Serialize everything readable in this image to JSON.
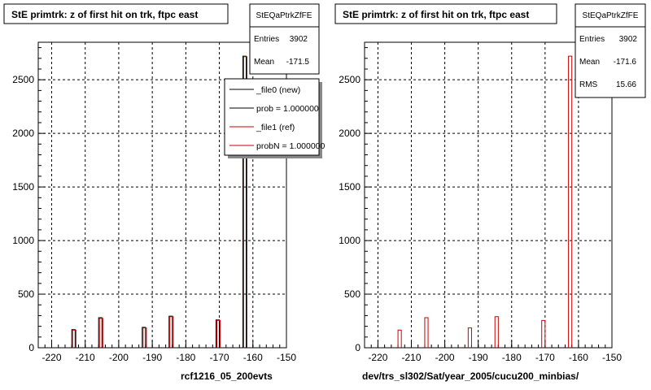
{
  "chart_data": [
    {
      "type": "bar",
      "title": "StE primtrk: z of first hit on trk, ftpc east",
      "xlabel": "rcf1216_05_200evts",
      "xlim": [
        -224,
        -150
      ],
      "ylim": [
        0,
        2850
      ],
      "xticks": [
        -220,
        -210,
        -200,
        -190,
        -180,
        -170,
        -160,
        -150
      ],
      "yticks": [
        0,
        500,
        1000,
        1500,
        2000,
        2500
      ],
      "grid": true,
      "stats": {
        "name": "StEQaPtrkZfFE",
        "rows": [
          {
            "label": "Entries",
            "value": "3902"
          },
          {
            "label": "Mean",
            "value": "-171.5"
          }
        ]
      },
      "legend": {
        "placement": "top-right",
        "entries": [
          {
            "label": "_file0 (new)",
            "color": "#000000"
          },
          {
            "label": "prob = 1.000000",
            "color": "#000000"
          },
          {
            "label": "_file1 (ref)",
            "color": "#cc0000"
          },
          {
            "label": "probN = 1.000000",
            "color": "#cc0000"
          }
        ]
      },
      "series": [
        {
          "color": "#000000",
          "bins": [
            {
              "x0": -214,
              "x1": -213,
              "y": 170
            },
            {
              "x0": -206,
              "x1": -205,
              "y": 280
            },
            {
              "x0": -193,
              "x1": -192,
              "y": 190
            },
            {
              "x0": -185,
              "x1": -184,
              "y": 295
            },
            {
              "x0": -171,
              "x1": -170,
              "y": 260
            },
            {
              "x0": -163,
              "x1": -162,
              "y": 2720
            }
          ]
        },
        {
          "color": "#cc0000",
          "bins": [
            {
              "x0": -214,
              "x1": -213,
              "y": 165
            },
            {
              "x0": -206,
              "x1": -205,
              "y": 275
            },
            {
              "x0": -193,
              "x1": -192,
              "y": 185
            },
            {
              "x0": -185,
              "x1": -184,
              "y": 290
            },
            {
              "x0": -171,
              "x1": -170,
              "y": 255
            },
            {
              "x0": -163,
              "x1": -162,
              "y": 2715
            }
          ]
        }
      ]
    },
    {
      "type": "bar",
      "title": "StE primtrk: z of first hit on trk, ftpc east",
      "xlabel": "dev/trs_sl302/Sat/year_2005/cucu200_minbias/",
      "xlim": [
        -224,
        -150
      ],
      "ylim": [
        0,
        2850
      ],
      "xticks": [
        -220,
        -210,
        -200,
        -190,
        -180,
        -170,
        -160,
        -150
      ],
      "yticks": [
        0,
        500,
        1000,
        1500,
        2000,
        2500
      ],
      "grid": true,
      "stats": {
        "name": "StEQaPtrkZfFE",
        "rows": [
          {
            "label": "Entries",
            "value": "3902"
          },
          {
            "label": "Mean",
            "value": "-171.6"
          },
          {
            "label": "RMS",
            "value": "15.66"
          }
        ]
      },
      "series": [
        {
          "color": "#cc0000",
          "bins": [
            {
              "x0": -214,
              "x1": -213,
              "y": 165
            },
            {
              "x0": -206,
              "x1": -205,
              "y": 280
            },
            {
              "x0": -193,
              "x1": -192,
              "y": 185
            },
            {
              "x0": -185,
              "x1": -184,
              "y": 290
            },
            {
              "x0": -171,
              "x1": -170,
              "y": 255
            },
            {
              "x0": -163,
              "x1": -162,
              "y": 2720
            }
          ]
        }
      ]
    }
  ]
}
